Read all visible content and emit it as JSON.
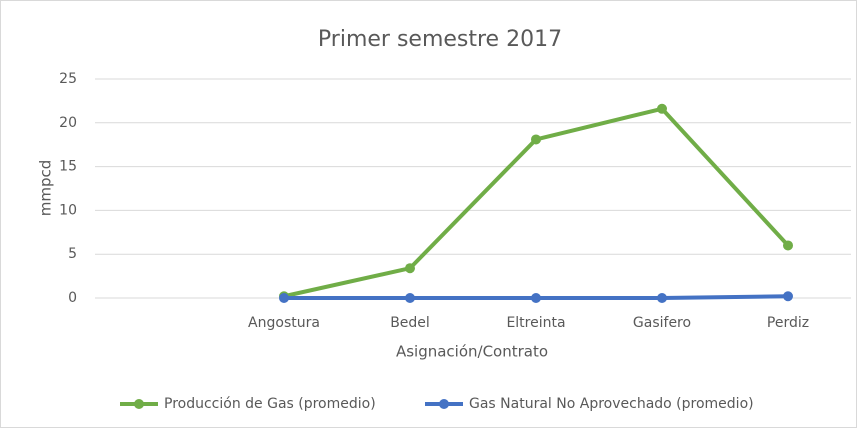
{
  "chart_data": {
    "type": "line",
    "title": "Primer semestre 2017",
    "xlabel": "Asignación/Contrato",
    "ylabel": "mmpcd",
    "categories": [
      null,
      "Angostura",
      "Bedel",
      "Eltreinta",
      "Gasifero",
      "Perdiz"
    ],
    "series": [
      {
        "name": "Producción de Gas (promedio)",
        "color": "#70ad47",
        "values": [
          null,
          0.2,
          3.4,
          18.1,
          21.6,
          6.0
        ]
      },
      {
        "name": "Gas Natural No Aprovechado  (promedio)",
        "color": "#4472c4",
        "values": [
          null,
          0,
          0,
          0,
          0,
          0.2
        ]
      }
    ],
    "ylim": [
      0,
      25
    ],
    "yticks": [
      0,
      5,
      10,
      15,
      20,
      25
    ],
    "grid": true,
    "legend": "bottom"
  }
}
